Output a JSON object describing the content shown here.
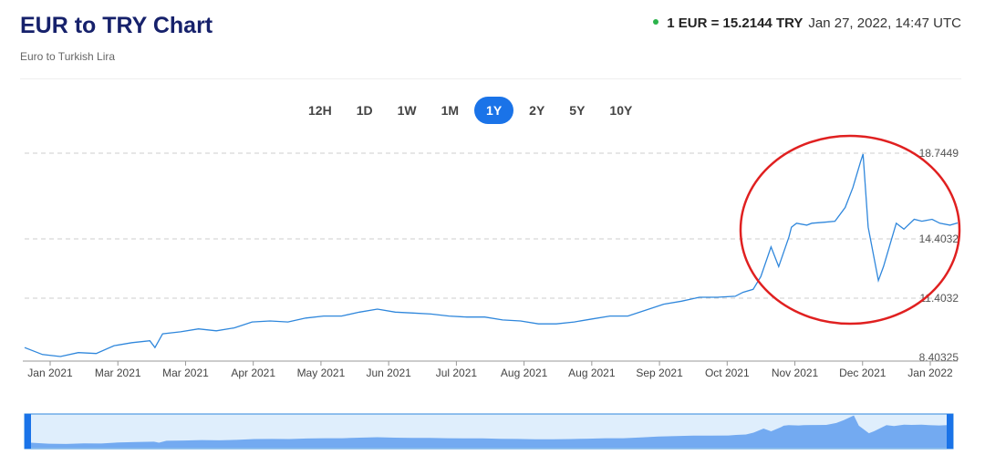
{
  "header": {
    "title": "EUR to TRY Chart",
    "subtitle": "Euro to Turkish Lira",
    "rate_value": "1 EUR = 15.2144 TRY",
    "rate_time": "Jan 27, 2022, 14:47 UTC",
    "status_color": "#2bb34b"
  },
  "ranges": [
    {
      "label": "12H",
      "active": false
    },
    {
      "label": "1D",
      "active": false
    },
    {
      "label": "1W",
      "active": false
    },
    {
      "label": "1M",
      "active": false
    },
    {
      "label": "1Y",
      "active": true
    },
    {
      "label": "2Y",
      "active": false
    },
    {
      "label": "5Y",
      "active": false
    },
    {
      "label": "10Y",
      "active": false
    }
  ],
  "colors": {
    "accent": "#1a73e8",
    "line": "#2f87dc",
    "annotation": "#e02020",
    "navigator_fill": "#c9e0fa"
  },
  "chart_data": {
    "type": "line",
    "title": "",
    "xlabel": "",
    "ylabel": "",
    "grid": true,
    "x_tick_labels": [
      "Jan 2021",
      "Mar 2021",
      "Mar 2021",
      "Apr 2021",
      "May 2021",
      "Jun 2021",
      "Jul 2021",
      "Aug 2021",
      "Aug 2021",
      "Sep 2021",
      "Oct 2021",
      "Nov 2021",
      "Dec 2021",
      "Jan 2022"
    ],
    "y_tick_labels": [
      "18.7449",
      "14.4032",
      "11.4032",
      "8.40325"
    ],
    "y_ticks": [
      18.7449,
      14.4032,
      11.4032,
      8.40325
    ],
    "ylim": [
      8.40325,
      18.7449
    ],
    "series": [
      {
        "x": [
          "2021-01-27",
          "2021-02-03",
          "2021-02-10",
          "2021-02-17",
          "2021-02-24",
          "2021-03-03",
          "2021-03-10",
          "2021-03-17",
          "2021-03-19",
          "2021-03-22",
          "2021-03-29",
          "2021-04-05",
          "2021-04-12",
          "2021-04-19",
          "2021-04-26",
          "2021-05-03",
          "2021-05-10",
          "2021-05-17",
          "2021-05-24",
          "2021-05-31",
          "2021-06-07",
          "2021-06-14",
          "2021-06-21",
          "2021-06-28",
          "2021-07-05",
          "2021-07-12",
          "2021-07-19",
          "2021-07-26",
          "2021-08-02",
          "2021-08-09",
          "2021-08-16",
          "2021-08-23",
          "2021-08-30",
          "2021-09-06",
          "2021-09-13",
          "2021-09-20",
          "2021-09-27",
          "2021-10-04",
          "2021-10-11",
          "2021-10-18",
          "2021-10-25",
          "2021-11-01",
          "2021-11-04",
          "2021-11-08",
          "2021-11-11",
          "2021-11-15",
          "2021-11-18",
          "2021-11-22",
          "2021-11-23",
          "2021-11-25",
          "2021-11-29",
          "2021-12-01",
          "2021-12-06",
          "2021-12-10",
          "2021-12-14",
          "2021-12-17",
          "2021-12-20",
          "2021-12-21",
          "2021-12-23",
          "2021-12-27",
          "2021-12-29",
          "2022-01-03",
          "2022-01-06",
          "2022-01-10",
          "2022-01-13",
          "2022-01-17",
          "2022-01-20",
          "2022-01-24",
          "2022-01-27"
        ],
        "y": [
          8.9,
          8.55,
          8.45,
          8.65,
          8.6,
          9.0,
          9.15,
          9.25,
          8.9,
          9.6,
          9.7,
          9.85,
          9.75,
          9.9,
          10.2,
          10.25,
          10.2,
          10.4,
          10.5,
          10.5,
          10.7,
          10.85,
          10.7,
          10.65,
          10.6,
          10.5,
          10.45,
          10.45,
          10.3,
          10.25,
          10.1,
          10.1,
          10.2,
          10.35,
          10.5,
          10.5,
          10.8,
          11.1,
          11.25,
          11.45,
          11.45,
          11.5,
          11.7,
          11.85,
          12.5,
          14.0,
          13.0,
          14.5,
          15.0,
          15.2,
          15.1,
          15.2,
          15.25,
          15.3,
          16.0,
          17.0,
          18.3,
          18.7,
          15.0,
          12.3,
          13.0,
          15.2,
          14.9,
          15.4,
          15.3,
          15.4,
          15.2,
          15.1,
          15.2144
        ]
      }
    ]
  }
}
